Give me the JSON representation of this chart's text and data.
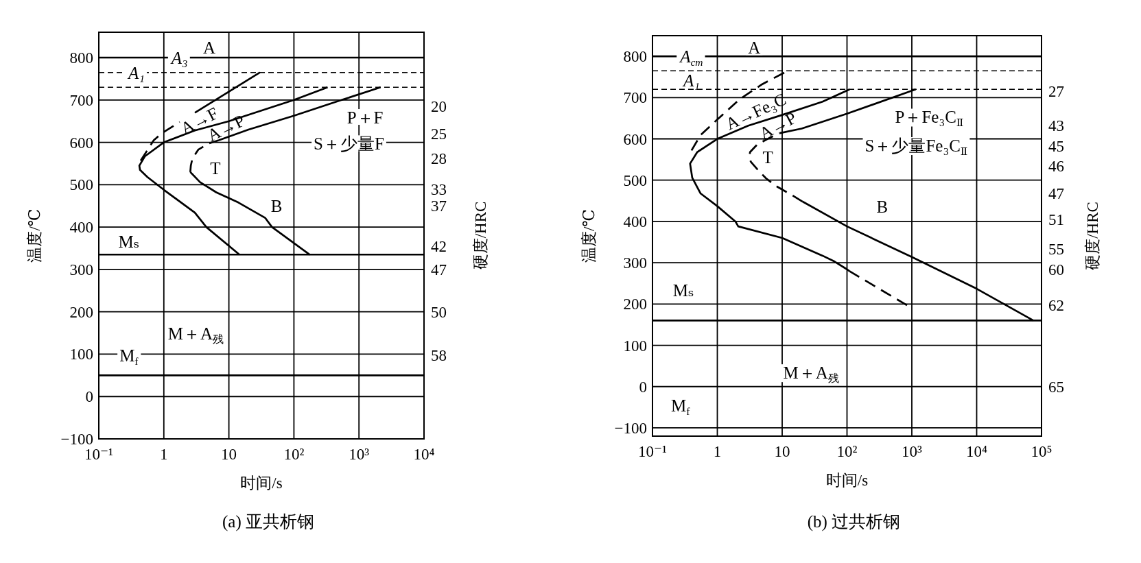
{
  "chart_data": [
    {
      "type": "line",
      "title": "(a) 亚共析钢",
      "xlabel": "时间/s",
      "ylabel": "温度/℃",
      "y2label": "硬度/HRC",
      "log": "x",
      "grid": true,
      "xlim": [
        0.1,
        10000
      ],
      "xticks": [
        {
          "value": 0.1,
          "label": "10⁻¹"
        },
        {
          "value": 1,
          "label": "1"
        },
        {
          "value": 10,
          "label": "10"
        },
        {
          "value": 100,
          "label": "10²"
        },
        {
          "value": 1000,
          "label": "10³"
        },
        {
          "value": 10000,
          "label": "10⁴"
        }
      ],
      "ylim": [
        -100,
        860
      ],
      "yticks": [
        {
          "value": -100,
          "label": "−100"
        },
        0,
        100,
        200,
        300,
        400,
        500,
        600,
        700,
        800
      ],
      "series": [
        {
          "color": "#000000",
          "line_style": "solid",
          "x": [
            14.5,
            4.5,
            3,
            1,
            0.56,
            0.43,
            0.42,
            0.51,
            1,
            3,
            10,
            100,
            330
          ],
          "values": [
            335,
            400,
            434,
            488,
            518,
            535,
            545,
            567,
            600,
            628,
            650,
            700,
            730
          ]
        },
        {
          "color": "#000000",
          "line_style": "solid",
          "x": [
            175,
            46,
            36,
            14,
            6.4,
            3.6,
            2.55
          ],
          "values": [
            335,
            400,
            422,
            458,
            482,
            506,
            530
          ]
        },
        {
          "color": "#000000",
          "line_style": "dashed",
          "x": [
            2.55,
            2.6,
            2.75,
            3.4,
            4.8,
            7
          ],
          "values": [
            530,
            545,
            562,
            583,
            597,
            605
          ]
        },
        {
          "color": "#000000",
          "line_style": "solid",
          "x": [
            7,
            20,
            100,
            540,
            2150
          ],
          "values": [
            605,
            630,
            663,
            700,
            730
          ]
        },
        {
          "color": "#000000",
          "line_style": "dashed",
          "x": [
            0.44,
            0.7,
            0.94,
            1.75
          ],
          "values": [
            557,
            605,
            622,
            648
          ]
        },
        {
          "color": "#000000",
          "line_style": "solid",
          "x": [
            3,
            30
          ],
          "values": [
            670,
            765
          ]
        }
      ],
      "ref_lines": [
        {
          "axis": "y",
          "value": 800,
          "label": "A₃",
          "line_style": "solid",
          "color": "#000000"
        },
        {
          "axis": "y",
          "value": 765,
          "label": "A₁",
          "line_style": "dashed",
          "color": "#000000"
        },
        {
          "axis": "y",
          "value": 730,
          "line_style": "dashed",
          "color": "#000000"
        },
        {
          "axis": "y",
          "value": 335,
          "label": "Mₛ",
          "line_style": "solid",
          "color": "#000000"
        },
        {
          "axis": "y",
          "value": 50,
          "line_style": "solid",
          "color": "#000000"
        }
      ],
      "annotations": [
        "A",
        "A→F",
        "A→P",
        "P＋F",
        "S＋少量F",
        "T",
        "B",
        "M＋A$_{残}$",
        "M$_{f}$",
        "20",
        "25",
        "28",
        "33",
        "37",
        "42",
        "47",
        "50",
        "58"
      ]
    },
    {
      "type": "line",
      "title": "(b) 过共析钢",
      "xlabel": "时间/s",
      "ylabel": "温度/℃",
      "y2label": "硬度/HRC",
      "log": "x",
      "grid": true,
      "xlim": [
        0.1,
        100000
      ],
      "xticks": [
        {
          "value": 0.1,
          "label": "10⁻¹"
        },
        {
          "value": 1,
          "label": "1"
        },
        {
          "value": 10,
          "label": "10"
        },
        {
          "value": 100,
          "label": "10²"
        },
        {
          "value": 1000,
          "label": "10³"
        },
        {
          "value": 10000,
          "label": "10⁴"
        },
        {
          "value": 100000,
          "label": "10⁵"
        }
      ],
      "ylim": [
        -120,
        850
      ],
      "yticks": [
        {
          "value": -100,
          "label": "−100"
        },
        0,
        100,
        200,
        300,
        400,
        500,
        600,
        700,
        800
      ],
      "series": [
        {
          "color": "#000000",
          "line_style": "solid",
          "x": [
            108,
            100,
            64,
            42,
            10,
            2.1,
            1.9,
            1,
            0.55,
            0.41,
            0.38,
            0.49,
            1,
            3,
            10,
            42,
            110
          ],
          "values": [
            280,
            284,
            303,
            317,
            360,
            388,
            400,
            437,
            468,
            506,
            540,
            568,
            600,
            632,
            658,
            690,
            720
          ]
        },
        {
          "color": "#000000",
          "line_style": "dashed",
          "x": [
            108,
            1000
          ],
          "values": [
            280,
            190
          ]
        },
        {
          "color": "#000000",
          "line_style": "dashed",
          "x": [
            0.4,
            0.55,
            1,
            2.25,
            5,
            13
          ],
          "values": [
            572,
            609,
            647,
            697,
            733,
            767
          ]
        },
        {
          "color": "#000000",
          "line_style": "dashed",
          "x": [
            20.7,
            14.8,
            7.8,
            5.6,
            4.5,
            3.3,
            3.1,
            3.2,
            4.1,
            6.3,
            9.2
          ],
          "values": [
            448,
            462,
            487,
            505,
            520,
            544,
            555,
            568,
            586,
            602,
            614
          ]
        },
        {
          "color": "#000000",
          "line_style": "solid",
          "x": [
            9.2,
            20,
            100,
            1150
          ],
          "values": [
            614,
            625,
            661,
            720
          ]
        },
        {
          "color": "#000000",
          "line_style": "solid",
          "x": [
            20.7,
            100,
            1000,
            10000,
            75000
          ],
          "values": [
            448,
            388,
            314,
            237,
            160
          ]
        }
      ],
      "ref_lines": [
        {
          "axis": "y",
          "value": 800,
          "label": "A$_{cm}$",
          "line_style": "solid",
          "color": "#000000"
        },
        {
          "axis": "y",
          "value": 765,
          "line_style": "dashed",
          "color": "#000000"
        },
        {
          "axis": "y",
          "value": 720,
          "label": "A₁",
          "line_style": "dashed",
          "color": "#000000"
        },
        {
          "axis": "y",
          "value": 160,
          "label": "Mₛ",
          "line_style": "solid",
          "color": "#000000"
        }
      ],
      "annotations": [
        "A",
        "A→Fe₃C",
        "A→P",
        "P＋Fe₃C$_{Ⅱ}$",
        "S＋少量Fe₃C$_{Ⅱ}$",
        "T",
        "B",
        "M＋A$_{残}$",
        "M$_{f}$",
        "27",
        "43",
        "45",
        "46",
        "47",
        "51",
        "55",
        "60",
        "62",
        "65"
      ]
    }
  ]
}
